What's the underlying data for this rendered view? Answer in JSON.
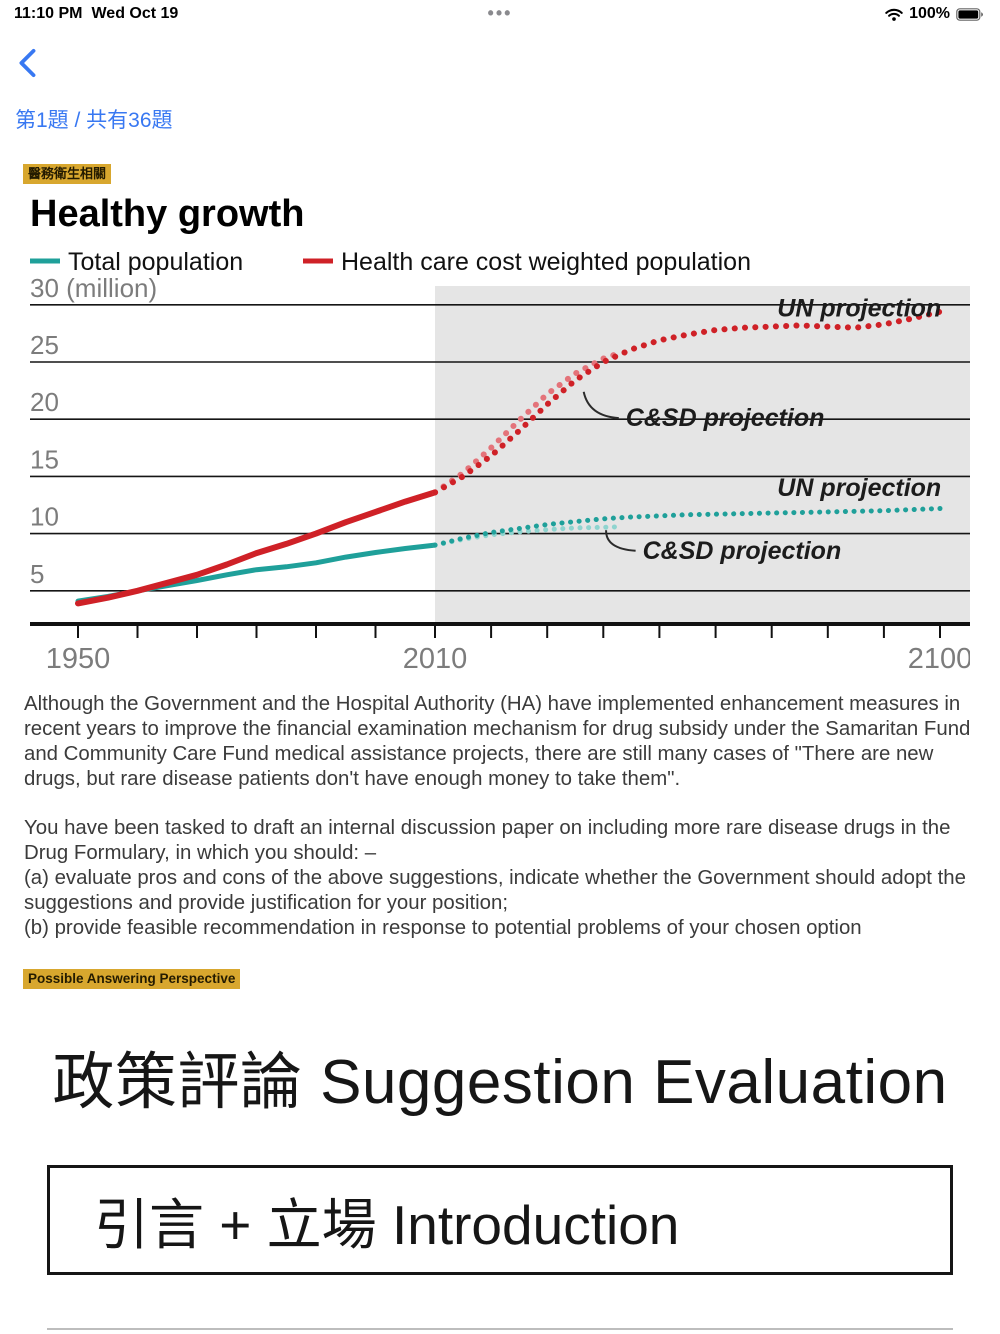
{
  "status_bar": {
    "time": "11:10 PM",
    "date": "Wed Oct 19",
    "menu_dots": "•••",
    "battery_percent": "100%",
    "wifi_icon": "wifi-icon",
    "battery_icon": "battery-full-icon"
  },
  "nav": {
    "back_icon": "chevron-left",
    "question_counter": "第1題 / 共有36題"
  },
  "question": {
    "category_tag": "醫務衛生相關",
    "passage_paragraphs": [
      "Although the Government and the Hospital Authority (HA) have implemented enhancement measures in recent years to improve the financial examination mechanism for drug subsidy under the Samaritan Fund and Community Care Fund medical assistance projects, there are still many cases of \"There are new drugs, but rare disease patients don't have enough money to take them\".",
      "You have been tasked to draft an internal discussion paper on including more rare disease drugs in the Drug Formulary, in which you should: –",
      "(a) evaluate pros and cons of the above suggestions, indicate whether the Government should adopt the suggestions and provide justification for your position;",
      "(b) provide feasible recommendation in response to potential problems of your chosen option"
    ],
    "perspective_tag": "Possible Answering Perspective",
    "answer_heading": "政策評論 Suggestion Evaluation",
    "answer_box_label": "引言 + 立場 Introduction"
  },
  "colors": {
    "accent_blue": "#3878f2",
    "tag_background": "#d8a72e",
    "chart_teal": "#1fa09a",
    "chart_red": "#cf2127"
  },
  "chart_data": {
    "type": "line",
    "title": "Healthy growth",
    "legend": [
      {
        "label": "Total population",
        "color": "#1fa09a"
      },
      {
        "label": "Health care cost weighted population",
        "color": "#cf2127"
      }
    ],
    "x_axis": {
      "min": 1950,
      "max": 2100,
      "tick_step": 10,
      "labeled_ticks": [
        1950,
        2010,
        2100
      ]
    },
    "y_axis": {
      "min": 2.1,
      "max": 31.5,
      "ticks": [
        {
          "value": 30,
          "label": "30 (million)"
        },
        {
          "value": 25,
          "label": "25"
        },
        {
          "value": 20,
          "label": "20"
        },
        {
          "value": 15,
          "label": "15"
        },
        {
          "value": 10,
          "label": "10"
        },
        {
          "value": 5,
          "label": "5"
        }
      ]
    },
    "projection_start_year": 2010,
    "projection_region_color": "#e5e5e5",
    "series": [
      {
        "name": "Total population (historical)",
        "color": "#1fa09a",
        "style": "solid",
        "width": 5,
        "points": [
          [
            1950,
            4.1
          ],
          [
            1955,
            4.5
          ],
          [
            1960,
            5.0
          ],
          [
            1965,
            5.45
          ],
          [
            1970,
            5.9
          ],
          [
            1975,
            6.4
          ],
          [
            1980,
            6.85
          ],
          [
            1985,
            7.1
          ],
          [
            1990,
            7.45
          ],
          [
            1995,
            7.95
          ],
          [
            2000,
            8.35
          ],
          [
            2005,
            8.7
          ],
          [
            2010,
            9.0
          ]
        ]
      },
      {
        "name": "Total population — C&SD projection",
        "color": "#8fd4cf",
        "style": "dotted",
        "width": 5,
        "points": [
          [
            2010,
            9.0
          ],
          [
            2015,
            9.5
          ],
          [
            2020,
            9.9
          ],
          [
            2025,
            10.15
          ],
          [
            2030,
            10.35
          ],
          [
            2035,
            10.5
          ],
          [
            2040,
            10.55
          ],
          [
            2043,
            10.6
          ]
        ]
      },
      {
        "name": "Total population — UN projection",
        "color": "#1fa09a",
        "style": "dotted",
        "width": 5,
        "points": [
          [
            2010,
            9.0
          ],
          [
            2015,
            9.6
          ],
          [
            2020,
            10.1
          ],
          [
            2025,
            10.45
          ],
          [
            2030,
            10.8
          ],
          [
            2035,
            11.05
          ],
          [
            2040,
            11.3
          ],
          [
            2045,
            11.45
          ],
          [
            2050,
            11.55
          ],
          [
            2055,
            11.65
          ],
          [
            2060,
            11.7
          ],
          [
            2065,
            11.75
          ],
          [
            2070,
            11.8
          ],
          [
            2075,
            11.85
          ],
          [
            2080,
            11.9
          ],
          [
            2085,
            11.95
          ],
          [
            2090,
            12.0
          ],
          [
            2095,
            12.1
          ],
          [
            2100,
            12.2
          ]
        ]
      },
      {
        "name": "Health care cost weighted population (historical)",
        "color": "#cf2127",
        "style": "solid",
        "width": 6,
        "points": [
          [
            1950,
            3.9
          ],
          [
            1955,
            4.4
          ],
          [
            1960,
            5.0
          ],
          [
            1965,
            5.7
          ],
          [
            1970,
            6.4
          ],
          [
            1975,
            7.3
          ],
          [
            1980,
            8.3
          ],
          [
            1985,
            9.1
          ],
          [
            1990,
            10.0
          ],
          [
            1995,
            11.0
          ],
          [
            2000,
            11.9
          ],
          [
            2005,
            12.8
          ],
          [
            2010,
            13.6
          ]
        ]
      },
      {
        "name": "Health care cost weighted population — C&SD projection",
        "color": "#e4737a",
        "style": "dotted",
        "width": 6,
        "points": [
          [
            2010,
            13.6
          ],
          [
            2015,
            15.3
          ],
          [
            2020,
            17.5
          ],
          [
            2025,
            19.9
          ],
          [
            2030,
            22.2
          ],
          [
            2035,
            24.0
          ],
          [
            2040,
            25.3
          ],
          [
            2043,
            25.8
          ]
        ]
      },
      {
        "name": "Health care cost weighted population — UN projection",
        "color": "#cf2127",
        "style": "dotted",
        "width": 6,
        "points": [
          [
            2010,
            13.6
          ],
          [
            2015,
            15.0
          ],
          [
            2020,
            16.8
          ],
          [
            2025,
            19.0
          ],
          [
            2030,
            21.3
          ],
          [
            2035,
            23.4
          ],
          [
            2040,
            25.0
          ],
          [
            2045,
            26.1
          ],
          [
            2050,
            26.9
          ],
          [
            2055,
            27.4
          ],
          [
            2060,
            27.8
          ],
          [
            2065,
            28.0
          ],
          [
            2070,
            28.1
          ],
          [
            2075,
            28.2
          ],
          [
            2080,
            28.1
          ],
          [
            2085,
            28.0
          ],
          [
            2090,
            28.3
          ],
          [
            2095,
            28.8
          ],
          [
            2100,
            29.4
          ]
        ]
      }
    ],
    "annotations": [
      {
        "text": "UN projection",
        "year": 2071,
        "value": 29.0
      },
      {
        "text": "C&SD projection",
        "year": 2044,
        "value": 19.4,
        "pointer_year": 2036.5,
        "pointer_value": 22.4
      },
      {
        "text": "UN projection",
        "year": 2071,
        "value": 13.3
      },
      {
        "text": "C&SD projection",
        "year": 2047,
        "value": 7.8,
        "pointer_year": 2040.5,
        "pointer_value": 10.3
      }
    ]
  }
}
